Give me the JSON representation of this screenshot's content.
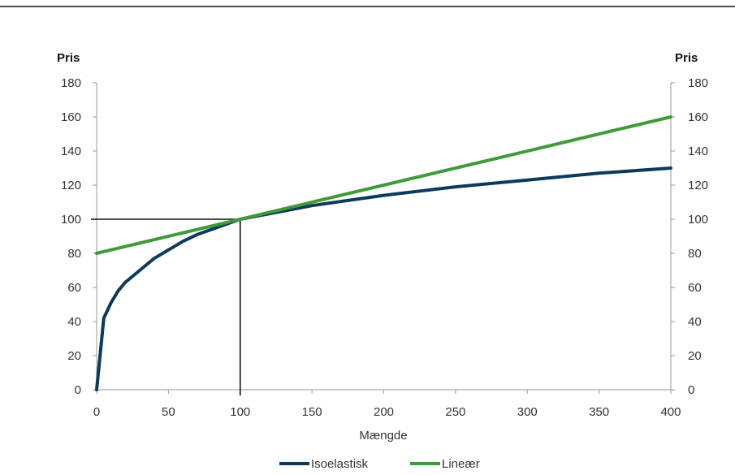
{
  "chart_data": {
    "type": "line",
    "title": "",
    "xlabel": "Mængde",
    "ylabel_left": "Pris",
    "ylabel_right": "Pris",
    "xlim": [
      0,
      400
    ],
    "ylim": [
      0,
      180
    ],
    "x_ticks": [
      0,
      50,
      100,
      150,
      200,
      250,
      300,
      350,
      400
    ],
    "y_ticks": [
      0,
      20,
      40,
      60,
      80,
      100,
      120,
      140,
      160,
      180
    ],
    "grid": false,
    "legend_position": "bottom",
    "reference_point": {
      "x": 100,
      "y": 100
    },
    "series": [
      {
        "name": "Isoelastisk",
        "color": "#0d3a5c",
        "x": [
          0,
          5,
          10,
          15,
          20,
          30,
          40,
          50,
          60,
          70,
          80,
          90,
          100,
          125,
          150,
          175,
          200,
          250,
          300,
          350,
          400
        ],
        "y": [
          0,
          42,
          51,
          58,
          63,
          70,
          77,
          82,
          87,
          91,
          94,
          97,
          100,
          104,
          108,
          111,
          114,
          119,
          123,
          127,
          130
        ]
      },
      {
        "name": "Lineær",
        "color": "#3f9b3a",
        "x": [
          0,
          400
        ],
        "y": [
          80,
          160
        ]
      }
    ]
  }
}
